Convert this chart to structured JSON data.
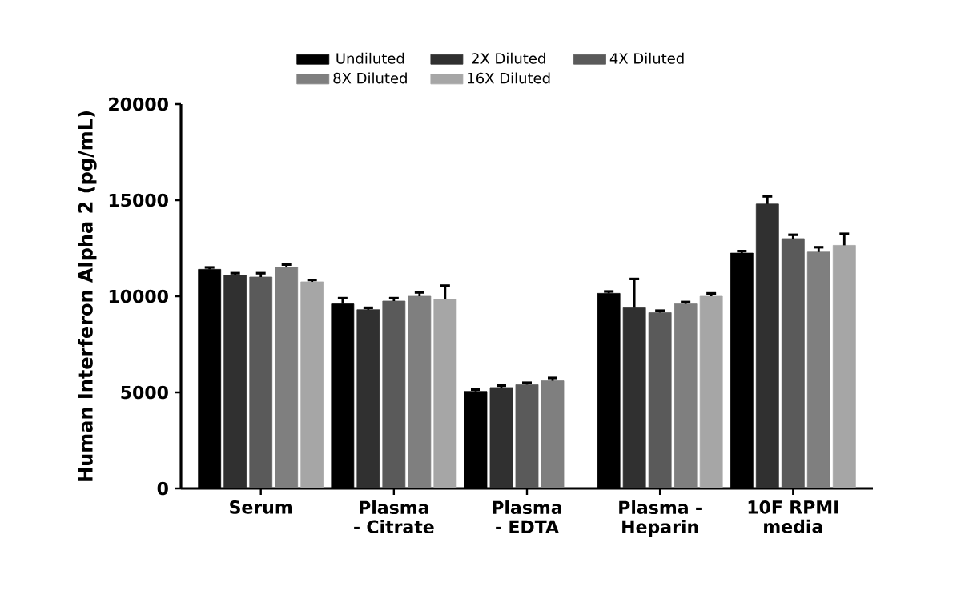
{
  "chart_data": {
    "type": "bar",
    "ylabel": "Human Interferon Alpha 2 (pg/mL)",
    "categories": [
      "Serum",
      "Plasma - Citrate",
      "Plasma - EDTA",
      "Plasma - Heparin",
      "10F RPMI media"
    ],
    "series": [
      {
        "name": "Undiluted",
        "color": "#000000",
        "values": [
          11400,
          9600,
          5050,
          10150,
          12250
        ],
        "errors": [
          100,
          300,
          100,
          100,
          100
        ]
      },
      {
        "name": "2X Diluted",
        "color": "#303030",
        "values": [
          11100,
          9300,
          5250,
          9400,
          14800
        ],
        "errors": [
          100,
          100,
          100,
          1500,
          400
        ]
      },
      {
        "name": "4X Diluted",
        "color": "#5a5a5a",
        "values": [
          11000,
          9750,
          5400,
          9150,
          13000
        ],
        "errors": [
          200,
          150,
          100,
          100,
          200
        ]
      },
      {
        "name": "8X Diluted",
        "color": "#7f7f7f",
        "values": [
          11500,
          10000,
          5600,
          9600,
          12300
        ],
        "errors": [
          150,
          200,
          150,
          100,
          250
        ]
      },
      {
        "name": "16X Diluted",
        "color": "#a6a6a6",
        "values": [
          10750,
          9850,
          null,
          10000,
          12650
        ],
        "errors": [
          100,
          700,
          null,
          150,
          600
        ]
      }
    ],
    "ylim": [
      0,
      20000
    ],
    "yticks": [
      0,
      5000,
      10000,
      15000,
      20000
    ],
    "legend": "top"
  }
}
